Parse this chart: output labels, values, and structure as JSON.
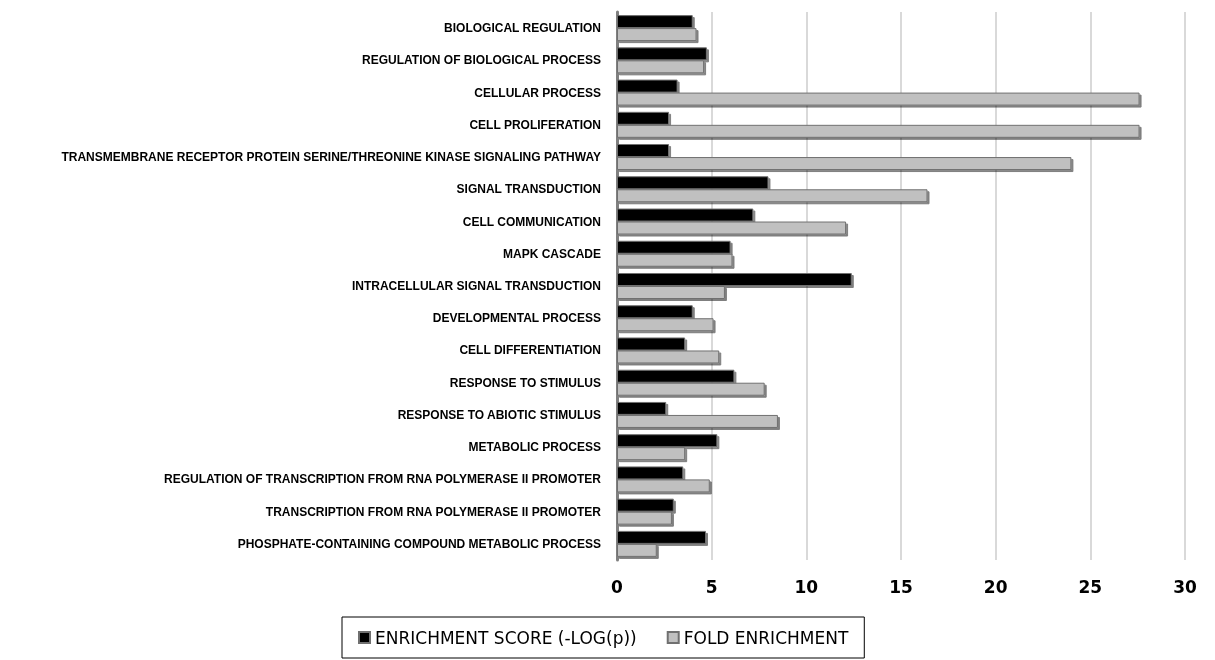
{
  "chart_data": {
    "type": "bar",
    "orientation": "horizontal",
    "categories": [
      "BIOLOGICAL REGULATION",
      "REGULATION OF BIOLOGICAL PROCESS",
      "CELLULAR PROCESS",
      "CELL PROLIFERATION",
      "TRANSMEMBRANE RECEPTOR PROTEIN SERINE/THREONINE KINASE SIGNALING PATHWAY",
      "SIGNAL TRANSDUCTION",
      "CELL COMMUNICATION",
      "MAPK CASCADE",
      "INTRACELLULAR SIGNAL TRANSDUCTION",
      "DEVELOPMENTAL PROCESS",
      "CELL DIFFERENTIATION",
      "RESPONSE TO STIMULUS",
      "RESPONSE TO ABIOTIC STIMULUS",
      "METABOLIC PROCESS",
      "REGULATION OF TRANSCRIPTION FROM RNA POLYMERASE II PROMOTER",
      "TRANSCRIPTION FROM RNA POLYMERASE II PROMOTER",
      "PHOSPHATE-CONTAINING COMPOUND METABOLIC PROCESS"
    ],
    "series": [
      {
        "name": "ENRICHMENT SCORE (-LOG(p))",
        "color": "#000000",
        "values": [
          4.0,
          4.75,
          3.2,
          2.75,
          2.75,
          8.0,
          7.2,
          6.0,
          12.4,
          4.0,
          3.6,
          6.2,
          2.6,
          5.3,
          3.5,
          3.0,
          4.7
        ]
      },
      {
        "name": "FOLD ENRICHMENT",
        "color": "#c0c0c0",
        "values": [
          4.2,
          4.6,
          27.6,
          27.6,
          24.0,
          16.4,
          12.1,
          6.1,
          5.7,
          5.1,
          5.4,
          7.8,
          8.5,
          3.6,
          4.9,
          2.9,
          2.1
        ]
      }
    ],
    "xlim": [
      0,
      30
    ],
    "xticks": [
      0,
      5,
      10,
      15,
      20,
      25,
      30
    ],
    "grid": "x",
    "legend": "bottom"
  }
}
